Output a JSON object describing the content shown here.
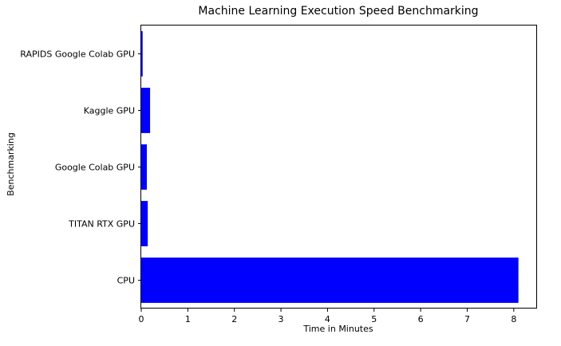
{
  "chart_data": {
    "type": "bar",
    "orientation": "horizontal",
    "title": "Machine Learning Execution Speed Benchmarking",
    "xlabel": "Time in Minutes",
    "ylabel": "Benchmarking",
    "categories": [
      "CPU",
      "TITAN RTX GPU",
      "Google Colab GPU",
      "Kaggle GPU",
      "RAPIDS Google Colab GPU"
    ],
    "values": [
      8.1,
      0.14,
      0.12,
      0.19,
      0.03
    ],
    "xlim": [
      0,
      8.5
    ],
    "xticks": [
      0,
      1,
      2,
      3,
      4,
      5,
      6,
      7,
      8
    ],
    "grid": false,
    "legend": "none",
    "bar_color": "#0000ff"
  }
}
